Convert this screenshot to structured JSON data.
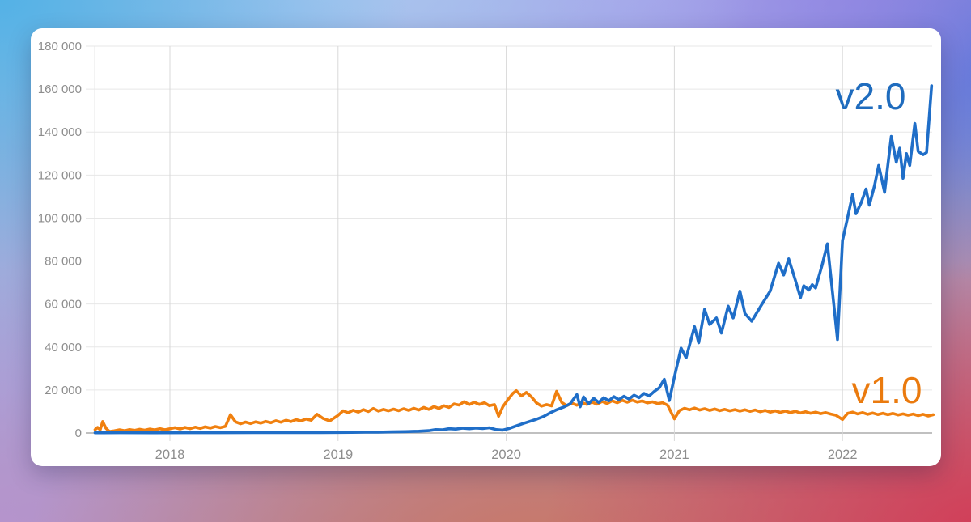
{
  "chart_data": {
    "type": "line",
    "title": "",
    "xlabel": "",
    "ylabel": "",
    "grid": true,
    "legend_position": "inline-end-labels",
    "x_axis": {
      "min": 2017.555,
      "max": 2022.55,
      "tick_years": [
        2018,
        2019,
        2020,
        2021,
        2022
      ],
      "tick_labels": [
        "2018",
        "2019",
        "2020",
        "2021",
        "2022"
      ]
    },
    "y_axis": {
      "min": 0,
      "max": 180000,
      "tick_values": [
        0,
        20000,
        40000,
        60000,
        80000,
        100000,
        120000,
        140000,
        160000,
        180000
      ],
      "tick_labels": [
        "0",
        "20 000",
        "40 000",
        "60 000",
        "80 000",
        "100 000",
        "120 000",
        "140 000",
        "160 000",
        "180 000"
      ]
    },
    "series": [
      {
        "name": "v1.0",
        "color": "#f0800f",
        "points": [
          [
            2017.555,
            1600
          ],
          [
            2017.57,
            2600
          ],
          [
            2017.585,
            1500
          ],
          [
            2017.6,
            5300
          ],
          [
            2017.62,
            2200
          ],
          [
            2017.64,
            700
          ],
          [
            2017.67,
            1000
          ],
          [
            2017.7,
            1500
          ],
          [
            2017.73,
            1050
          ],
          [
            2017.76,
            1600
          ],
          [
            2017.79,
            1200
          ],
          [
            2017.82,
            1750
          ],
          [
            2017.85,
            1300
          ],
          [
            2017.88,
            1850
          ],
          [
            2017.91,
            1450
          ],
          [
            2017.94,
            2000
          ],
          [
            2017.97,
            1500
          ],
          [
            2018.0,
            1950
          ],
          [
            2018.03,
            2500
          ],
          [
            2018.06,
            1900
          ],
          [
            2018.09,
            2600
          ],
          [
            2018.12,
            2050
          ],
          [
            2018.15,
            2700
          ],
          [
            2018.18,
            2150
          ],
          [
            2018.21,
            2850
          ],
          [
            2018.24,
            2300
          ],
          [
            2018.27,
            3000
          ],
          [
            2018.3,
            2500
          ],
          [
            2018.33,
            3100
          ],
          [
            2018.36,
            8500
          ],
          [
            2018.39,
            5200
          ],
          [
            2018.42,
            4300
          ],
          [
            2018.45,
            5100
          ],
          [
            2018.48,
            4400
          ],
          [
            2018.51,
            5200
          ],
          [
            2018.54,
            4600
          ],
          [
            2018.57,
            5400
          ],
          [
            2018.6,
            4800
          ],
          [
            2018.63,
            5700
          ],
          [
            2018.66,
            5000
          ],
          [
            2018.69,
            5900
          ],
          [
            2018.72,
            5300
          ],
          [
            2018.75,
            6200
          ],
          [
            2018.78,
            5600
          ],
          [
            2018.81,
            6500
          ],
          [
            2018.84,
            5900
          ],
          [
            2018.875,
            8700
          ],
          [
            2018.91,
            6800
          ],
          [
            2018.95,
            5600
          ],
          [
            2019.0,
            8200
          ],
          [
            2019.03,
            10300
          ],
          [
            2019.06,
            9400
          ],
          [
            2019.09,
            10600
          ],
          [
            2019.12,
            9700
          ],
          [
            2019.15,
            10900
          ],
          [
            2019.18,
            10000
          ],
          [
            2019.21,
            11400
          ],
          [
            2019.24,
            10200
          ],
          [
            2019.27,
            11000
          ],
          [
            2019.3,
            10300
          ],
          [
            2019.33,
            11100
          ],
          [
            2019.36,
            10400
          ],
          [
            2019.39,
            11300
          ],
          [
            2019.42,
            10500
          ],
          [
            2019.45,
            11500
          ],
          [
            2019.48,
            10700
          ],
          [
            2019.51,
            11900
          ],
          [
            2019.54,
            11000
          ],
          [
            2019.57,
            12300
          ],
          [
            2019.6,
            11400
          ],
          [
            2019.63,
            12700
          ],
          [
            2019.66,
            11900
          ],
          [
            2019.69,
            13500
          ],
          [
            2019.72,
            13000
          ],
          [
            2019.75,
            14600
          ],
          [
            2019.78,
            13200
          ],
          [
            2019.81,
            14300
          ],
          [
            2019.84,
            13300
          ],
          [
            2019.87,
            14100
          ],
          [
            2019.9,
            12700
          ],
          [
            2019.93,
            13200
          ],
          [
            2019.955,
            7800
          ],
          [
            2019.98,
            12200
          ],
          [
            2020.01,
            15500
          ],
          [
            2020.04,
            18500
          ],
          [
            2020.06,
            19700
          ],
          [
            2020.09,
            17200
          ],
          [
            2020.12,
            18900
          ],
          [
            2020.15,
            16800
          ],
          [
            2020.18,
            14000
          ],
          [
            2020.21,
            12500
          ],
          [
            2020.24,
            13200
          ],
          [
            2020.27,
            12600
          ],
          [
            2020.3,
            19400
          ],
          [
            2020.33,
            14200
          ],
          [
            2020.36,
            12700
          ],
          [
            2020.39,
            13900
          ],
          [
            2020.42,
            12900
          ],
          [
            2020.45,
            14200
          ],
          [
            2020.48,
            13300
          ],
          [
            2020.51,
            14400
          ],
          [
            2020.54,
            13400
          ],
          [
            2020.57,
            14700
          ],
          [
            2020.6,
            13700
          ],
          [
            2020.63,
            15000
          ],
          [
            2020.66,
            14100
          ],
          [
            2020.69,
            15200
          ],
          [
            2020.72,
            14300
          ],
          [
            2020.75,
            15300
          ],
          [
            2020.78,
            14400
          ],
          [
            2020.81,
            14900
          ],
          [
            2020.84,
            14000
          ],
          [
            2020.87,
            14500
          ],
          [
            2020.9,
            13700
          ],
          [
            2020.93,
            14100
          ],
          [
            2020.96,
            12900
          ],
          [
            2021.0,
            6600
          ],
          [
            2021.03,
            10400
          ],
          [
            2021.06,
            11500
          ],
          [
            2021.09,
            10800
          ],
          [
            2021.12,
            11600
          ],
          [
            2021.15,
            10700
          ],
          [
            2021.18,
            11300
          ],
          [
            2021.21,
            10500
          ],
          [
            2021.24,
            11200
          ],
          [
            2021.27,
            10400
          ],
          [
            2021.3,
            11000
          ],
          [
            2021.33,
            10300
          ],
          [
            2021.36,
            10900
          ],
          [
            2021.39,
            10200
          ],
          [
            2021.42,
            10800
          ],
          [
            2021.45,
            10100
          ],
          [
            2021.48,
            10700
          ],
          [
            2021.51,
            9900
          ],
          [
            2021.54,
            10500
          ],
          [
            2021.57,
            9700
          ],
          [
            2021.6,
            10300
          ],
          [
            2021.63,
            9600
          ],
          [
            2021.66,
            10200
          ],
          [
            2021.69,
            9500
          ],
          [
            2021.72,
            10100
          ],
          [
            2021.75,
            9300
          ],
          [
            2021.78,
            9900
          ],
          [
            2021.81,
            9200
          ],
          [
            2021.84,
            9700
          ],
          [
            2021.87,
            9000
          ],
          [
            2021.9,
            9500
          ],
          [
            2021.93,
            8800
          ],
          [
            2021.96,
            8300
          ],
          [
            2022.0,
            6300
          ],
          [
            2022.03,
            9100
          ],
          [
            2022.06,
            9700
          ],
          [
            2022.09,
            8900
          ],
          [
            2022.12,
            9500
          ],
          [
            2022.15,
            8700
          ],
          [
            2022.18,
            9300
          ],
          [
            2022.21,
            8600
          ],
          [
            2022.24,
            9200
          ],
          [
            2022.27,
            8500
          ],
          [
            2022.3,
            9100
          ],
          [
            2022.33,
            8400
          ],
          [
            2022.36,
            8900
          ],
          [
            2022.39,
            8300
          ],
          [
            2022.42,
            8800
          ],
          [
            2022.45,
            8100
          ],
          [
            2022.48,
            8700
          ],
          [
            2022.51,
            7900
          ],
          [
            2022.54,
            8500
          ]
        ]
      },
      {
        "name": "v2.0",
        "color": "#1f6ec8",
        "points": [
          [
            2017.555,
            120
          ],
          [
            2017.7,
            150
          ],
          [
            2017.9,
            130
          ],
          [
            2018.1,
            160
          ],
          [
            2018.3,
            150
          ],
          [
            2018.5,
            190
          ],
          [
            2018.7,
            180
          ],
          [
            2018.9,
            220
          ],
          [
            2019.0,
            250
          ],
          [
            2019.08,
            300
          ],
          [
            2019.16,
            360
          ],
          [
            2019.24,
            430
          ],
          [
            2019.32,
            520
          ],
          [
            2019.4,
            650
          ],
          [
            2019.48,
            820
          ],
          [
            2019.54,
            1100
          ],
          [
            2019.58,
            1600
          ],
          [
            2019.62,
            1450
          ],
          [
            2019.66,
            2000
          ],
          [
            2019.7,
            1800
          ],
          [
            2019.74,
            2250
          ],
          [
            2019.78,
            2000
          ],
          [
            2019.82,
            2350
          ],
          [
            2019.86,
            2100
          ],
          [
            2019.9,
            2450
          ],
          [
            2019.94,
            1600
          ],
          [
            2019.98,
            1350
          ],
          [
            2020.02,
            2200
          ],
          [
            2020.06,
            3300
          ],
          [
            2020.1,
            4400
          ],
          [
            2020.14,
            5400
          ],
          [
            2020.18,
            6400
          ],
          [
            2020.22,
            7600
          ],
          [
            2020.26,
            9300
          ],
          [
            2020.3,
            10800
          ],
          [
            2020.34,
            12000
          ],
          [
            2020.38,
            13600
          ],
          [
            2020.42,
            17900
          ],
          [
            2020.44,
            12200
          ],
          [
            2020.46,
            16800
          ],
          [
            2020.49,
            13600
          ],
          [
            2020.52,
            16100
          ],
          [
            2020.55,
            14200
          ],
          [
            2020.58,
            16400
          ],
          [
            2020.61,
            15000
          ],
          [
            2020.64,
            16900
          ],
          [
            2020.67,
            15500
          ],
          [
            2020.7,
            17100
          ],
          [
            2020.73,
            15800
          ],
          [
            2020.76,
            17600
          ],
          [
            2020.79,
            16400
          ],
          [
            2020.82,
            18400
          ],
          [
            2020.85,
            17200
          ],
          [
            2020.88,
            19300
          ],
          [
            2020.91,
            21000
          ],
          [
            2020.94,
            25000
          ],
          [
            2020.97,
            15100
          ],
          [
            2021.0,
            26000
          ],
          [
            2021.04,
            39500
          ],
          [
            2021.07,
            35000
          ],
          [
            2021.12,
            49500
          ],
          [
            2021.145,
            42000
          ],
          [
            2021.18,
            57500
          ],
          [
            2021.21,
            50500
          ],
          [
            2021.25,
            53500
          ],
          [
            2021.28,
            46500
          ],
          [
            2021.32,
            59000
          ],
          [
            2021.35,
            53500
          ],
          [
            2021.39,
            66000
          ],
          [
            2021.42,
            55500
          ],
          [
            2021.46,
            52000
          ],
          [
            2021.51,
            58500
          ],
          [
            2021.57,
            66000
          ],
          [
            2021.62,
            79000
          ],
          [
            2021.65,
            73500
          ],
          [
            2021.68,
            81000
          ],
          [
            2021.72,
            71000
          ],
          [
            2021.75,
            63000
          ],
          [
            2021.77,
            68500
          ],
          [
            2021.8,
            66500
          ],
          [
            2021.82,
            69000
          ],
          [
            2021.84,
            67500
          ],
          [
            2021.88,
            78500
          ],
          [
            2021.91,
            88000
          ],
          [
            2021.94,
            66000
          ],
          [
            2021.97,
            43500
          ],
          [
            2022.0,
            89500
          ],
          [
            2022.03,
            100000
          ],
          [
            2022.06,
            111000
          ],
          [
            2022.08,
            102000
          ],
          [
            2022.11,
            107000
          ],
          [
            2022.14,
            113500
          ],
          [
            2022.16,
            106000
          ],
          [
            2022.19,
            115000
          ],
          [
            2022.215,
            124500
          ],
          [
            2022.25,
            112000
          ],
          [
            2022.29,
            138000
          ],
          [
            2022.32,
            126000
          ],
          [
            2022.34,
            132500
          ],
          [
            2022.36,
            118500
          ],
          [
            2022.38,
            130000
          ],
          [
            2022.4,
            124500
          ],
          [
            2022.43,
            144000
          ],
          [
            2022.45,
            131000
          ],
          [
            2022.48,
            129500
          ],
          [
            2022.5,
            130500
          ],
          [
            2022.53,
            161500
          ]
        ]
      }
    ]
  },
  "colors": {
    "grid_horizontal": "#e7e7e7",
    "grid_vertical": "#d8d8d8",
    "axis_baseline": "#ababab",
    "tick_text": "#8d8d8d",
    "card_background": "#ffffff"
  }
}
